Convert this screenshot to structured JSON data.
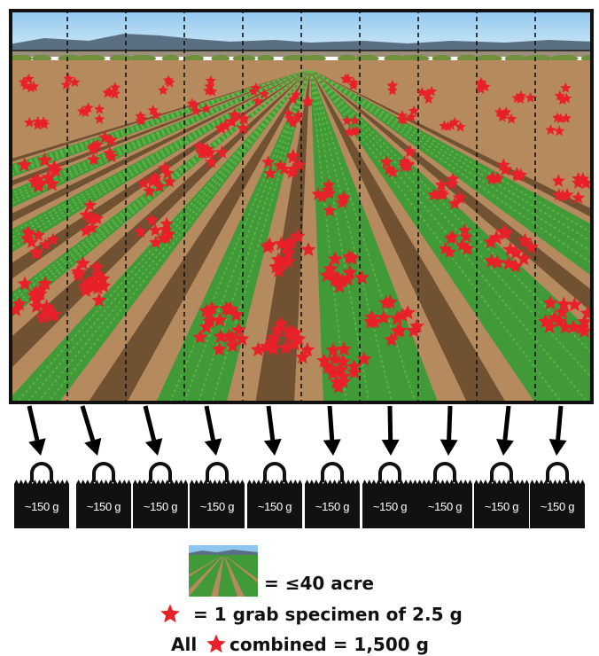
{
  "colors": {
    "star": "#e8202a",
    "frame": "#111111",
    "bag": "#111111",
    "sky_top": "#8ec6ef",
    "sky_bottom": "#d4ebf8",
    "mountain": "#5b6f82",
    "soil": "#b58a5e",
    "soil_dark": "#5a3e24",
    "crop": "#3f9a37",
    "crop_light": "#66b94a"
  },
  "field": {
    "subplot_count": 10
  },
  "bags": [
    {
      "label": "~150 g"
    },
    {
      "label": "~150 g"
    },
    {
      "label": "~150 g"
    },
    {
      "label": "~150 g"
    },
    {
      "label": "~150 g"
    },
    {
      "label": "~150 g"
    },
    {
      "label": "~150 g"
    },
    {
      "label": "~150 g"
    },
    {
      "label": "~150 g"
    },
    {
      "label": "~150 g"
    }
  ],
  "legend": {
    "field_text": "= ≤40 acre",
    "star_text": "= 1 grab specimen of 2.5 g",
    "combined_prefix": "All",
    "combined_suffix": "combined = 1,500 g",
    "star_icon": "red-star-icon",
    "field_icon": "field-thumbnail-icon"
  }
}
